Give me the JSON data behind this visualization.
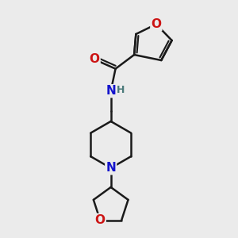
{
  "bg_color": "#ebebeb",
  "bond_color": "#1a1a1a",
  "bond_width": 1.8,
  "N_color": "#1414cc",
  "O_color": "#cc1414",
  "H_color": "#4a7a7a",
  "figsize": [
    3.0,
    3.0
  ],
  "dpi": 100,
  "xlim": [
    0,
    10
  ],
  "ylim": [
    0,
    10
  ]
}
